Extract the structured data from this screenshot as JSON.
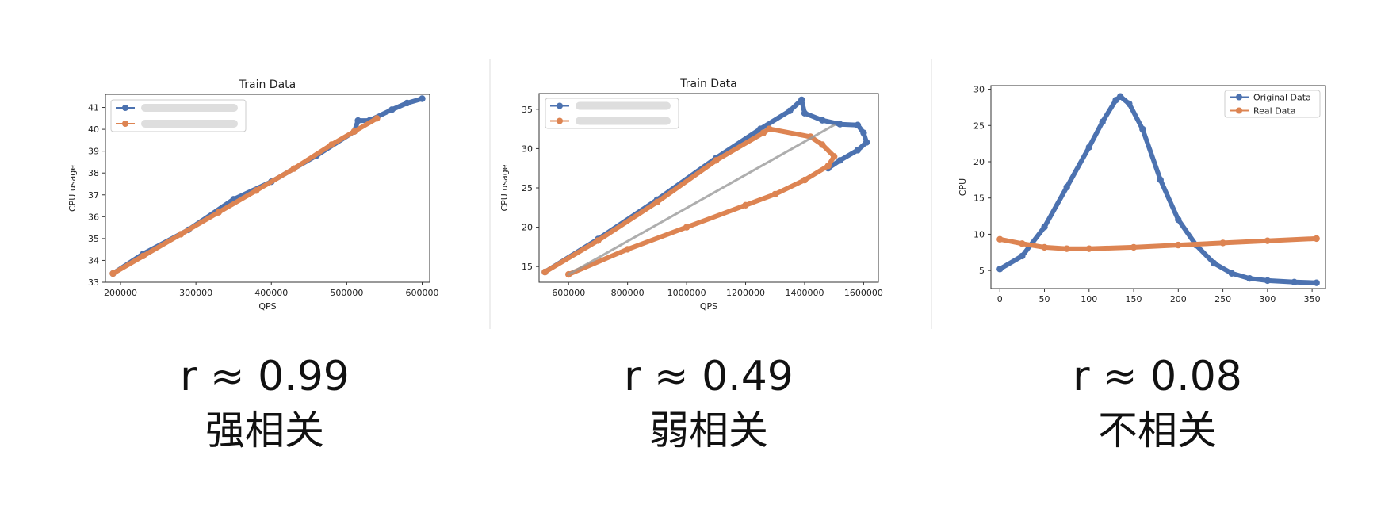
{
  "chart_data": [
    {
      "type": "line",
      "title": "Train Data",
      "xlabel": "QPS",
      "ylabel": "CPU usage",
      "xlim": [
        180000,
        610000
      ],
      "ylim": [
        33,
        41.6
      ],
      "xticks": [
        200000,
        300000,
        400000,
        500000,
        600000
      ],
      "yticks": [
        33,
        34,
        35,
        36,
        37,
        38,
        39,
        40,
        41
      ],
      "legend": [
        "blurred_series_1",
        "blurred_series_2"
      ],
      "legend_position": "top-left",
      "colors": [
        "#4c72b0",
        "#dd8452"
      ],
      "series": [
        {
          "name": "blurred_series_1",
          "x": [
            190000,
            230000,
            290000,
            350000,
            400000,
            460000,
            510000,
            515000,
            530000,
            560000,
            580000,
            600000
          ],
          "y": [
            33.4,
            34.3,
            35.4,
            36.8,
            37.6,
            38.8,
            39.9,
            40.4,
            40.4,
            40.9,
            41.2,
            41.4
          ]
        },
        {
          "name": "blurred_series_2",
          "x": [
            190000,
            230000,
            280000,
            330000,
            380000,
            430000,
            480000,
            510000,
            540000
          ],
          "y": [
            33.4,
            34.2,
            35.2,
            36.2,
            37.2,
            38.2,
            39.3,
            39.9,
            40.5
          ]
        }
      ],
      "caption_r": "r ≈ 0.99",
      "caption_label": "强相关"
    },
    {
      "type": "line",
      "title": "Train Data",
      "xlabel": "QPS",
      "ylabel": "CPU usage",
      "xlim": [
        500000,
        1650000
      ],
      "ylim": [
        13,
        37
      ],
      "xticks": [
        600000,
        800000,
        1000000,
        1200000,
        1400000,
        1600000
      ],
      "yticks": [
        15,
        20,
        25,
        30,
        35
      ],
      "legend": [
        "blurred_series_1",
        "blurred_series_2"
      ],
      "legend_position": "top-left",
      "colors": [
        "#4c72b0",
        "#dd8452"
      ],
      "series": [
        {
          "name": "blurred_series_1",
          "x": [
            520000,
            700000,
            900000,
            1100000,
            1250000,
            1350000,
            1390000,
            1400000,
            1460000,
            1520000,
            1580000,
            1600000,
            1610000,
            1580000,
            1520000,
            1480000
          ],
          "y": [
            14.3,
            18.5,
            23.5,
            28.8,
            32.5,
            34.8,
            36.2,
            34.5,
            33.6,
            33.1,
            33.0,
            32.0,
            30.8,
            29.8,
            28.5,
            27.5
          ]
        },
        {
          "name": "blurred_series_2",
          "x": [
            520000,
            700000,
            900000,
            1100000,
            1260000,
            1280000,
            1420000,
            1460000,
            1500000,
            1480000,
            1400000,
            1300000,
            1200000,
            1000000,
            800000,
            600000
          ],
          "y": [
            14.3,
            18.3,
            23.2,
            28.5,
            32.0,
            32.5,
            31.5,
            30.5,
            29.0,
            27.8,
            26.0,
            24.2,
            22.8,
            20.0,
            17.2,
            14.0
          ]
        },
        {
          "name": "trend",
          "x": [
            600000,
            1500000
          ],
          "y": [
            14.0,
            33.0
          ]
        }
      ],
      "caption_r": "r ≈ 0.49",
      "caption_label": "弱相关"
    },
    {
      "type": "line",
      "title": "",
      "xlabel": "",
      "ylabel": "CPU",
      "xlim": [
        -10,
        365
      ],
      "ylim": [
        2.5,
        30.5
      ],
      "xticks": [
        0,
        50,
        100,
        150,
        200,
        250,
        300,
        350
      ],
      "yticks": [
        5,
        10,
        15,
        20,
        25,
        30
      ],
      "legend": [
        "Original Data",
        "Real Data"
      ],
      "legend_position": "top-right",
      "colors": [
        "#4c72b0",
        "#dd8452"
      ],
      "series": [
        {
          "name": "Original Data",
          "x": [
            0,
            25,
            50,
            75,
            100,
            115,
            130,
            135,
            145,
            160,
            180,
            200,
            220,
            240,
            260,
            280,
            300,
            330,
            355
          ],
          "y": [
            5.2,
            7.0,
            11.0,
            16.5,
            22.0,
            25.5,
            28.5,
            29.0,
            28.0,
            24.5,
            17.5,
            12.0,
            8.5,
            6.0,
            4.6,
            3.9,
            3.6,
            3.4,
            3.3
          ]
        },
        {
          "name": "Real Data",
          "x": [
            0,
            25,
            50,
            75,
            100,
            150,
            200,
            250,
            300,
            355
          ],
          "y": [
            9.3,
            8.7,
            8.2,
            8.0,
            8.0,
            8.2,
            8.5,
            8.8,
            9.1,
            9.4
          ]
        }
      ],
      "caption_r": "r ≈ 0.08",
      "caption_label": "不相关"
    }
  ]
}
